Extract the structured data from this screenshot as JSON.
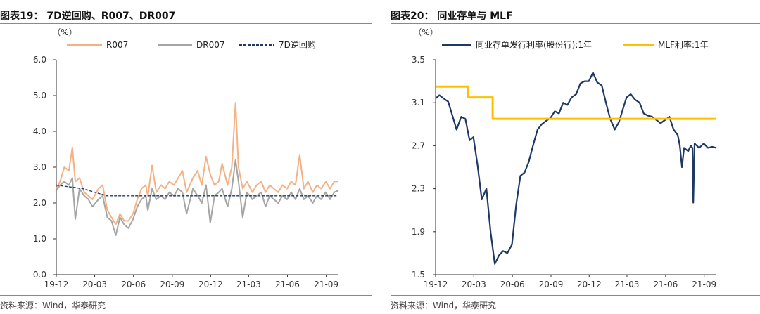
{
  "panels": [
    {
      "title": "图表19：  7D逆回购、R007、DR007",
      "source": "资料来源：Wind，华泰研究"
    },
    {
      "title": "图表20：  同业存单与 MLF",
      "source": "资料来源：Wind，华泰研究"
    }
  ],
  "chart_data": [
    {
      "type": "line",
      "ylabel": "（%）",
      "ylim": [
        0,
        6
      ],
      "yticks": [
        "0.0",
        "1.0",
        "2.0",
        "3.0",
        "4.0",
        "5.0",
        "6.0"
      ],
      "x_tick_labels": [
        "19-12",
        "20-03",
        "20-06",
        "20-09",
        "20-12",
        "21-03",
        "21-06",
        "21-09"
      ],
      "grid": false,
      "legend_position": "top",
      "series": [
        {
          "name": "R007",
          "color": "#f4b183",
          "style": "solid",
          "values": [
            [
              "2019-12-01",
              2.4
            ],
            [
              "2019-12-10",
              2.6
            ],
            [
              "2019-12-20",
              3.0
            ],
            [
              "2019-12-31",
              2.9
            ],
            [
              "2020-01-08",
              3.55
            ],
            [
              "2020-01-15",
              2.6
            ],
            [
              "2020-01-25",
              2.7
            ],
            [
              "2020-02-05",
              2.3
            ],
            [
              "2020-02-15",
              2.2
            ],
            [
              "2020-02-25",
              2.1
            ],
            [
              "2020-03-10",
              2.4
            ],
            [
              "2020-03-20",
              2.5
            ],
            [
              "2020-03-31",
              1.8
            ],
            [
              "2020-04-10",
              1.6
            ],
            [
              "2020-04-20",
              1.4
            ],
            [
              "2020-04-30",
              1.7
            ],
            [
              "2020-05-10",
              1.5
            ],
            [
              "2020-05-20",
              1.5
            ],
            [
              "2020-05-31",
              1.7
            ],
            [
              "2020-06-10",
              2.1
            ],
            [
              "2020-06-20",
              2.4
            ],
            [
              "2020-06-30",
              2.5
            ],
            [
              "2020-07-05",
              2.2
            ],
            [
              "2020-07-15",
              3.05
            ],
            [
              "2020-07-25",
              2.3
            ],
            [
              "2020-08-05",
              2.5
            ],
            [
              "2020-08-15",
              2.4
            ],
            [
              "2020-08-25",
              2.6
            ],
            [
              "2020-09-05",
              2.5
            ],
            [
              "2020-09-15",
              2.7
            ],
            [
              "2020-09-25",
              2.9
            ],
            [
              "2020-10-05",
              2.3
            ],
            [
              "2020-10-20",
              2.7
            ],
            [
              "2020-10-31",
              2.9
            ],
            [
              "2020-11-10",
              2.5
            ],
            [
              "2020-11-20",
              3.3
            ],
            [
              "2020-11-30",
              2.8
            ],
            [
              "2020-12-10",
              2.5
            ],
            [
              "2020-12-20",
              2.6
            ],
            [
              "2020-12-28",
              3.1
            ],
            [
              "2021-01-10",
              2.5
            ],
            [
              "2021-01-20",
              3.0
            ],
            [
              "2021-01-29",
              4.8
            ],
            [
              "2021-02-05",
              3.0
            ],
            [
              "2021-02-15",
              2.4
            ],
            [
              "2021-02-25",
              2.6
            ],
            [
              "2021-03-10",
              2.3
            ],
            [
              "2021-03-20",
              2.5
            ],
            [
              "2021-03-31",
              2.6
            ],
            [
              "2021-04-10",
              2.3
            ],
            [
              "2021-04-20",
              2.5
            ],
            [
              "2021-04-30",
              2.4
            ],
            [
              "2021-05-10",
              2.3
            ],
            [
              "2021-05-20",
              2.5
            ],
            [
              "2021-05-31",
              2.4
            ],
            [
              "2021-06-10",
              2.6
            ],
            [
              "2021-06-20",
              2.5
            ],
            [
              "2021-06-30",
              3.35
            ],
            [
              "2021-07-10",
              2.4
            ],
            [
              "2021-07-20",
              2.6
            ],
            [
              "2021-07-31",
              2.3
            ],
            [
              "2021-08-10",
              2.5
            ],
            [
              "2021-08-20",
              2.4
            ],
            [
              "2021-08-31",
              2.6
            ],
            [
              "2021-09-10",
              2.4
            ],
            [
              "2021-09-20",
              2.6
            ],
            [
              "2021-09-30",
              2.6
            ]
          ]
        },
        {
          "name": "DR007",
          "color": "#a5a5a5",
          "style": "solid",
          "values": [
            [
              "2019-12-01",
              2.35
            ],
            [
              "2019-12-10",
              2.5
            ],
            [
              "2019-12-20",
              2.6
            ],
            [
              "2019-12-31",
              2.5
            ],
            [
              "2020-01-08",
              2.7
            ],
            [
              "2020-01-15",
              1.55
            ],
            [
              "2020-01-25",
              2.4
            ],
            [
              "2020-02-05",
              2.2
            ],
            [
              "2020-02-15",
              2.1
            ],
            [
              "2020-02-25",
              1.9
            ],
            [
              "2020-03-10",
              2.1
            ],
            [
              "2020-03-20",
              2.2
            ],
            [
              "2020-03-31",
              1.6
            ],
            [
              "2020-04-10",
              1.5
            ],
            [
              "2020-04-20",
              1.1
            ],
            [
              "2020-04-30",
              1.6
            ],
            [
              "2020-05-10",
              1.4
            ],
            [
              "2020-05-20",
              1.3
            ],
            [
              "2020-05-31",
              1.55
            ],
            [
              "2020-06-10",
              1.9
            ],
            [
              "2020-06-20",
              2.1
            ],
            [
              "2020-06-30",
              2.2
            ],
            [
              "2020-07-05",
              1.8
            ],
            [
              "2020-07-15",
              2.4
            ],
            [
              "2020-07-25",
              2.1
            ],
            [
              "2020-08-05",
              2.2
            ],
            [
              "2020-08-15",
              2.1
            ],
            [
              "2020-08-25",
              2.3
            ],
            [
              "2020-09-05",
              2.2
            ],
            [
              "2020-09-15",
              2.4
            ],
            [
              "2020-09-25",
              2.3
            ],
            [
              "2020-10-05",
              1.7
            ],
            [
              "2020-10-20",
              2.4
            ],
            [
              "2020-10-31",
              2.2
            ],
            [
              "2020-11-10",
              2.0
            ],
            [
              "2020-11-20",
              2.5
            ],
            [
              "2020-11-30",
              1.45
            ],
            [
              "2020-12-10",
              2.2
            ],
            [
              "2020-12-20",
              2.3
            ],
            [
              "2020-12-28",
              2.4
            ],
            [
              "2021-01-10",
              1.9
            ],
            [
              "2021-01-20",
              2.4
            ],
            [
              "2021-01-29",
              3.2
            ],
            [
              "2021-02-05",
              2.6
            ],
            [
              "2021-02-15",
              1.6
            ],
            [
              "2021-02-25",
              2.3
            ],
            [
              "2021-03-10",
              2.1
            ],
            [
              "2021-03-20",
              2.2
            ],
            [
              "2021-03-31",
              2.3
            ],
            [
              "2021-04-10",
              1.9
            ],
            [
              "2021-04-20",
              2.2
            ],
            [
              "2021-04-30",
              2.1
            ],
            [
              "2021-05-10",
              2.0
            ],
            [
              "2021-05-20",
              2.2
            ],
            [
              "2021-05-31",
              2.1
            ],
            [
              "2021-06-10",
              2.3
            ],
            [
              "2021-06-20",
              2.1
            ],
            [
              "2021-06-30",
              2.4
            ],
            [
              "2021-07-10",
              2.1
            ],
            [
              "2021-07-20",
              2.2
            ],
            [
              "2021-07-31",
              2.0
            ],
            [
              "2021-08-10",
              2.2
            ],
            [
              "2021-08-20",
              2.1
            ],
            [
              "2021-08-31",
              2.3
            ],
            [
              "2021-09-10",
              2.1
            ],
            [
              "2021-09-20",
              2.3
            ],
            [
              "2021-09-30",
              2.35
            ]
          ]
        },
        {
          "name": "7D逆回购",
          "color": "#1f3864",
          "style": "dashed",
          "values": [
            [
              "2019-12-01",
              2.5
            ],
            [
              "2020-02-02",
              2.4
            ],
            [
              "2020-03-30",
              2.2
            ],
            [
              "2021-09-30",
              2.2
            ]
          ]
        }
      ]
    },
    {
      "type": "line",
      "ylabel": "（%）",
      "ylim": [
        1.5,
        3.5
      ],
      "yticks": [
        "1.5",
        "1.9",
        "2.3",
        "2.7",
        "3.1",
        "3.5"
      ],
      "x_tick_labels": [
        "19-12",
        "20-03",
        "20-06",
        "20-09",
        "20-12",
        "21-03",
        "21-06",
        "21-09"
      ],
      "grid": false,
      "legend_position": "top",
      "series": [
        {
          "name": "同业存单发行利率(股份行):1年",
          "color": "#1f3864",
          "style": "solid",
          "values": [
            [
              "2019-12-01",
              3.14
            ],
            [
              "2019-12-10",
              3.17
            ],
            [
              "2019-12-20",
              3.14
            ],
            [
              "2019-12-31",
              3.11
            ],
            [
              "2020-01-10",
              2.98
            ],
            [
              "2020-01-20",
              2.85
            ],
            [
              "2020-01-31",
              2.97
            ],
            [
              "2020-02-10",
              2.95
            ],
            [
              "2020-02-20",
              2.75
            ],
            [
              "2020-02-29",
              2.78
            ],
            [
              "2020-03-10",
              2.52
            ],
            [
              "2020-03-20",
              2.2
            ],
            [
              "2020-03-31",
              2.3
            ],
            [
              "2020-04-10",
              1.9
            ],
            [
              "2020-04-20",
              1.6
            ],
            [
              "2020-04-30",
              1.68
            ],
            [
              "2020-05-10",
              1.72
            ],
            [
              "2020-05-20",
              1.7
            ],
            [
              "2020-05-31",
              1.78
            ],
            [
              "2020-06-10",
              2.15
            ],
            [
              "2020-06-20",
              2.42
            ],
            [
              "2020-06-30",
              2.45
            ],
            [
              "2020-07-10",
              2.55
            ],
            [
              "2020-07-20",
              2.7
            ],
            [
              "2020-07-31",
              2.85
            ],
            [
              "2020-08-10",
              2.9
            ],
            [
              "2020-08-20",
              2.93
            ],
            [
              "2020-08-31",
              2.96
            ],
            [
              "2020-09-10",
              3.02
            ],
            [
              "2020-09-20",
              3.0
            ],
            [
              "2020-09-30",
              3.1
            ],
            [
              "2020-10-10",
              3.08
            ],
            [
              "2020-10-20",
              3.15
            ],
            [
              "2020-10-31",
              3.18
            ],
            [
              "2020-11-10",
              3.28
            ],
            [
              "2020-11-20",
              3.3
            ],
            [
              "2020-11-30",
              3.3
            ],
            [
              "2020-12-10",
              3.38
            ],
            [
              "2020-12-20",
              3.29
            ],
            [
              "2020-12-31",
              3.26
            ],
            [
              "2021-01-10",
              3.1
            ],
            [
              "2021-01-20",
              2.95
            ],
            [
              "2021-01-31",
              2.85
            ],
            [
              "2021-02-10",
              2.92
            ],
            [
              "2021-02-20",
              3.05
            ],
            [
              "2021-02-28",
              3.15
            ],
            [
              "2021-03-10",
              3.18
            ],
            [
              "2021-03-20",
              3.13
            ],
            [
              "2021-03-31",
              3.1
            ],
            [
              "2021-04-10",
              3.0
            ],
            [
              "2021-04-20",
              2.98
            ],
            [
              "2021-04-30",
              2.97
            ],
            [
              "2021-05-10",
              2.94
            ],
            [
              "2021-05-20",
              2.91
            ],
            [
              "2021-05-31",
              2.94
            ],
            [
              "2021-06-10",
              2.97
            ],
            [
              "2021-06-20",
              2.85
            ],
            [
              "2021-06-30",
              2.8
            ],
            [
              "2021-07-05",
              2.7
            ],
            [
              "2021-07-10",
              2.5
            ],
            [
              "2021-07-15",
              2.68
            ],
            [
              "2021-07-25",
              2.65
            ],
            [
              "2021-07-31",
              2.7
            ],
            [
              "2021-08-04",
              2.68
            ],
            [
              "2021-08-06",
              2.17
            ],
            [
              "2021-08-09",
              2.72
            ],
            [
              "2021-08-20",
              2.68
            ],
            [
              "2021-08-31",
              2.72
            ],
            [
              "2021-09-10",
              2.68
            ],
            [
              "2021-09-20",
              2.69
            ],
            [
              "2021-09-30",
              2.68
            ]
          ]
        },
        {
          "name": "MLF利率:1年",
          "color": "#ffc000",
          "style": "solid",
          "values": [
            [
              "2019-12-01",
              3.25
            ],
            [
              "2020-02-17",
              3.25
            ],
            [
              "2020-02-17",
              3.15
            ],
            [
              "2020-04-15",
              3.15
            ],
            [
              "2020-04-15",
              2.95
            ],
            [
              "2021-09-30",
              2.95
            ]
          ]
        }
      ]
    }
  ]
}
